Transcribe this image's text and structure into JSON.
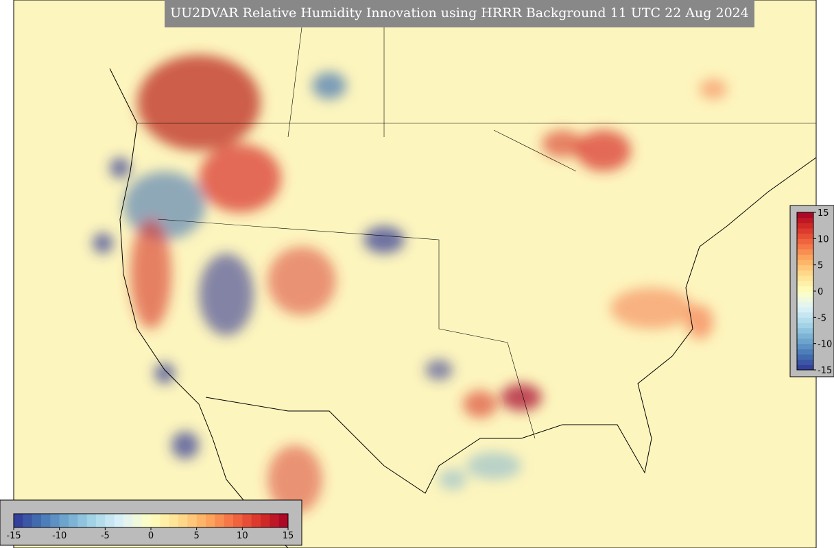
{
  "title": "UU2DVAR Relative Humidity Innovation using HRRR Background 11 UTC 22 Aug 2024",
  "colorbar": {
    "lim": [
      -15,
      15
    ],
    "ticks": [
      -15,
      -10,
      -5,
      0,
      5,
      10,
      15
    ],
    "colormap": [
      "#313695",
      "#4575b4",
      "#74add1",
      "#abd9e9",
      "#e0f3f8",
      "#ffffbf",
      "#fee090",
      "#fdae61",
      "#f46d43",
      "#d73027",
      "#a50026"
    ]
  }
}
